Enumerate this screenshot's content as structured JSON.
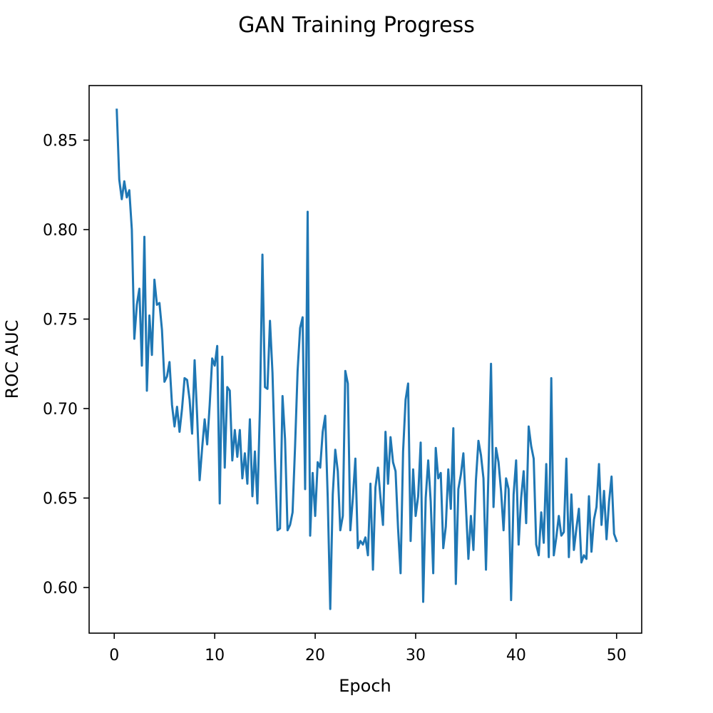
{
  "chart_data": {
    "type": "line",
    "title": "GAN Training Progress",
    "xlabel": "Epoch",
    "ylabel": "ROC AUC",
    "xlim": [
      -2.5,
      52.5
    ],
    "ylim": [
      0.5745,
      0.8805
    ],
    "xticks": [
      0,
      10,
      20,
      30,
      40,
      50
    ],
    "xtick_labels": [
      "0",
      "10",
      "20",
      "30",
      "40",
      "50"
    ],
    "yticks": [
      0.6,
      0.65,
      0.7,
      0.75,
      0.8,
      0.85
    ],
    "ytick_labels": [
      "0.60",
      "0.65",
      "0.70",
      "0.75",
      "0.80",
      "0.85"
    ],
    "grid": false,
    "series": [
      {
        "color": "#1f77b4",
        "x": [
          0.25,
          0.5,
          0.75,
          1.0,
          1.25,
          1.5,
          1.75,
          2.0,
          2.25,
          2.5,
          2.75,
          3.0,
          3.25,
          3.5,
          3.75,
          4.0,
          4.25,
          4.5,
          4.75,
          5.0,
          5.25,
          5.5,
          5.75,
          6.0,
          6.25,
          6.5,
          6.75,
          7.0,
          7.25,
          7.5,
          7.75,
          8.0,
          8.25,
          8.5,
          8.75,
          9.0,
          9.25,
          9.5,
          9.75,
          10.0,
          10.25,
          10.5,
          10.75,
          11.0,
          11.25,
          11.5,
          11.75,
          12.0,
          12.25,
          12.5,
          12.75,
          13.0,
          13.25,
          13.5,
          13.75,
          14.0,
          14.25,
          14.5,
          14.75,
          15.0,
          15.25,
          15.5,
          15.75,
          16.0,
          16.25,
          16.5,
          16.75,
          17.0,
          17.25,
          17.5,
          17.75,
          18.0,
          18.25,
          18.5,
          18.75,
          19.0,
          19.25,
          19.5,
          19.75,
          20.0,
          20.25,
          20.5,
          20.75,
          21.0,
          21.25,
          21.5,
          21.75,
          22.0,
          22.25,
          22.5,
          22.75,
          23.0,
          23.25,
          23.5,
          23.75,
          24.0,
          24.25,
          24.5,
          24.75,
          25.0,
          25.25,
          25.5,
          25.75,
          26.0,
          26.25,
          26.5,
          26.75,
          27.0,
          27.25,
          27.5,
          27.75,
          28.0,
          28.25,
          28.5,
          28.75,
          29.0,
          29.25,
          29.5,
          29.75,
          30.0,
          30.25,
          30.5,
          30.75,
          31.0,
          31.25,
          31.5,
          31.75,
          32.0,
          32.25,
          32.5,
          32.75,
          33.0,
          33.25,
          33.5,
          33.75,
          34.0,
          34.25,
          34.5,
          34.75,
          35.0,
          35.25,
          35.5,
          35.75,
          36.0,
          36.25,
          36.5,
          36.75,
          37.0,
          37.25,
          37.5,
          37.75,
          38.0,
          38.25,
          38.5,
          38.75,
          39.0,
          39.25,
          39.5,
          39.75,
          40.0,
          40.25,
          40.5,
          40.75,
          41.0,
          41.25,
          41.5,
          41.75,
          42.0,
          42.25,
          42.5,
          42.75,
          43.0,
          43.25,
          43.5,
          43.75,
          44.0,
          44.25,
          44.5,
          44.75,
          45.0,
          45.25,
          45.5,
          45.75,
          46.0,
          46.25,
          46.5,
          46.75,
          47.0,
          47.25,
          47.5,
          47.75,
          48.0,
          48.25,
          48.5,
          48.75,
          49.0,
          49.25,
          49.5,
          49.75,
          50.0
        ],
        "y": [
          0.867,
          0.828,
          0.817,
          0.827,
          0.818,
          0.822,
          0.8,
          0.739,
          0.758,
          0.767,
          0.724,
          0.796,
          0.71,
          0.752,
          0.73,
          0.772,
          0.758,
          0.759,
          0.744,
          0.715,
          0.718,
          0.726,
          0.702,
          0.69,
          0.701,
          0.687,
          0.7,
          0.717,
          0.716,
          0.705,
          0.686,
          0.727,
          0.696,
          0.66,
          0.678,
          0.694,
          0.68,
          0.702,
          0.728,
          0.724,
          0.735,
          0.647,
          0.729,
          0.667,
          0.712,
          0.71,
          0.671,
          0.688,
          0.673,
          0.688,
          0.661,
          0.675,
          0.658,
          0.694,
          0.651,
          0.676,
          0.647,
          0.7,
          0.786,
          0.712,
          0.711,
          0.749,
          0.72,
          0.671,
          0.632,
          0.633,
          0.707,
          0.683,
          0.632,
          0.635,
          0.642,
          0.679,
          0.721,
          0.745,
          0.751,
          0.655,
          0.81,
          0.629,
          0.664,
          0.64,
          0.67,
          0.667,
          0.687,
          0.696,
          0.65,
          0.588,
          0.652,
          0.677,
          0.665,
          0.632,
          0.64,
          0.721,
          0.714,
          0.632,
          0.65,
          0.672,
          0.622,
          0.626,
          0.624,
          0.628,
          0.618,
          0.658,
          0.61,
          0.656,
          0.667,
          0.65,
          0.635,
          0.687,
          0.658,
          0.684,
          0.67,
          0.665,
          0.633,
          0.608,
          0.676,
          0.705,
          0.714,
          0.626,
          0.666,
          0.64,
          0.651,
          0.681,
          0.592,
          0.65,
          0.671,
          0.648,
          0.608,
          0.678,
          0.661,
          0.664,
          0.622,
          0.634,
          0.666,
          0.644,
          0.689,
          0.602,
          0.655,
          0.663,
          0.675,
          0.646,
          0.616,
          0.64,
          0.621,
          0.66,
          0.682,
          0.674,
          0.661,
          0.61,
          0.665,
          0.725,
          0.645,
          0.678,
          0.67,
          0.654,
          0.632,
          0.661,
          0.655,
          0.593,
          0.652,
          0.671,
          0.624,
          0.65,
          0.665,
          0.636,
          0.69,
          0.679,
          0.672,
          0.624,
          0.618,
          0.642,
          0.625,
          0.669,
          0.617,
          0.717,
          0.618,
          0.628,
          0.64,
          0.629,
          0.631,
          0.672,
          0.617,
          0.652,
          0.621,
          0.633,
          0.644,
          0.614,
          0.618,
          0.616,
          0.651,
          0.62,
          0.638,
          0.645,
          0.669,
          0.635,
          0.654,
          0.627,
          0.648,
          0.662,
          0.63,
          0.626
        ]
      }
    ]
  }
}
